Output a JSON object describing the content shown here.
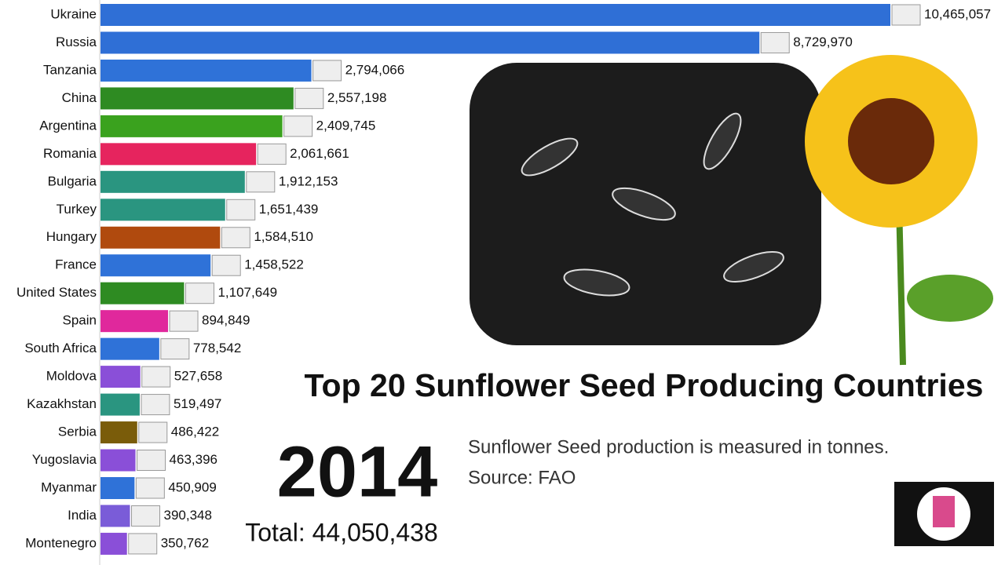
{
  "chart_data": {
    "type": "bar",
    "orientation": "horizontal",
    "title": "Top 20 Sunflower Seed Producing Countries",
    "year": "2014",
    "total": "Total: 44,050,438",
    "subtitle": [
      "Sunflower Seed production is measured in tonnes.",
      "Source: FAO"
    ],
    "categories": [
      "Ukraine",
      "Russia",
      "Tanzania",
      "China",
      "Argentina",
      "Romania",
      "Bulgaria",
      "Turkey",
      "Hungary",
      "France",
      "United States",
      "Spain",
      "South Africa",
      "Moldova",
      "Kazakhstan",
      "Serbia",
      "Yugoslavia",
      "Myanmar",
      "India",
      "Montenegro"
    ],
    "values": [
      10465057,
      8729970,
      2794066,
      2557198,
      2409745,
      2061661,
      1912153,
      1651439,
      1584510,
      1458522,
      1107649,
      894849,
      778542,
      527658,
      519497,
      486422,
      463396,
      450909,
      390348,
      350762
    ],
    "value_labels": [
      "10,465,057",
      "8,729,970",
      "2,794,066",
      "2,557,198",
      "2,409,745",
      "2,061,661",
      "1,912,153",
      "1,651,439",
      "1,584,510",
      "1,458,522",
      "1,107,649",
      "894,849",
      "778,542",
      "527,658",
      "519,497",
      "486,422",
      "463,396",
      "450,909",
      "390,348",
      "350,762"
    ],
    "colors": [
      "#2f6fd6",
      "#2f6fd6",
      "#2f72d8",
      "#2e8b22",
      "#3aa21e",
      "#e6245e",
      "#2a9580",
      "#2a9580",
      "#b04a0e",
      "#2f72d8",
      "#2e8b22",
      "#e0289c",
      "#2f72d8",
      "#8a4fd8",
      "#2a9580",
      "#7a5c0a",
      "#8a4fd8",
      "#2f72d8",
      "#7a5cd8",
      "#8a4fd8"
    ]
  }
}
